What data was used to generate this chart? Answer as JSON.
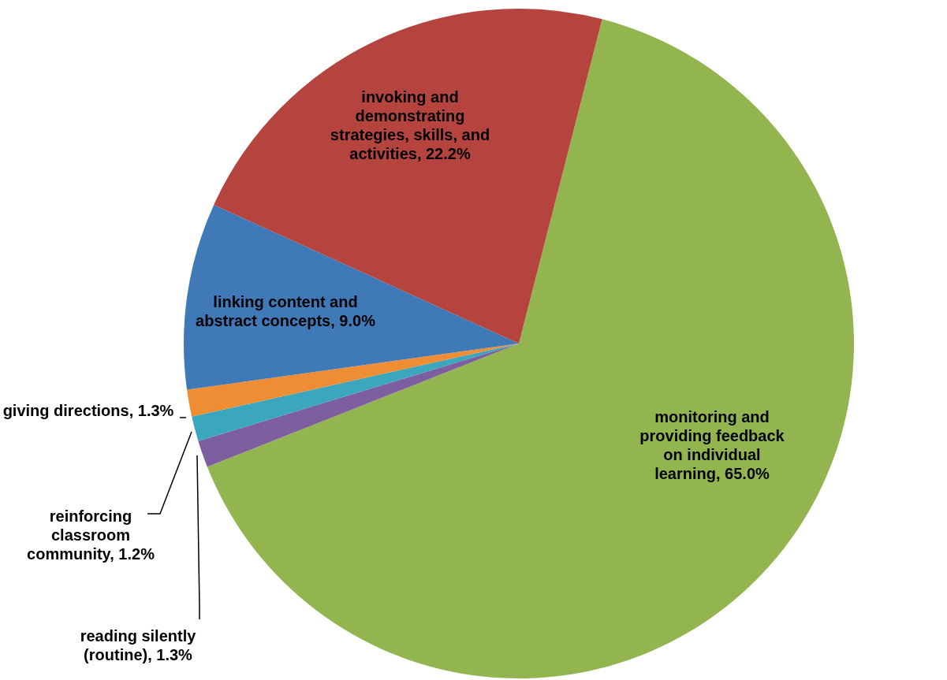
{
  "chart_data": {
    "type": "pie",
    "categories": [
      "monitoring and providing feedback on individual learning",
      "reading silently (routine)",
      "reinforcing classroom community",
      "giving directions",
      "linking content and abstract concepts",
      "invoking and demonstrating strategies, skills, and activities"
    ],
    "values": [
      65.0,
      1.3,
      1.2,
      1.3,
      9.0,
      22.2
    ],
    "value_labels": [
      "65.0%",
      "1.3%",
      "1.2%",
      "1.3%",
      "9.0%",
      "22.2%"
    ],
    "colors": [
      "#93b550",
      "#7d5f9f",
      "#3aa7bf",
      "#ef8d34",
      "#3f79b8",
      "#b5443f"
    ],
    "legend": false
  }
}
